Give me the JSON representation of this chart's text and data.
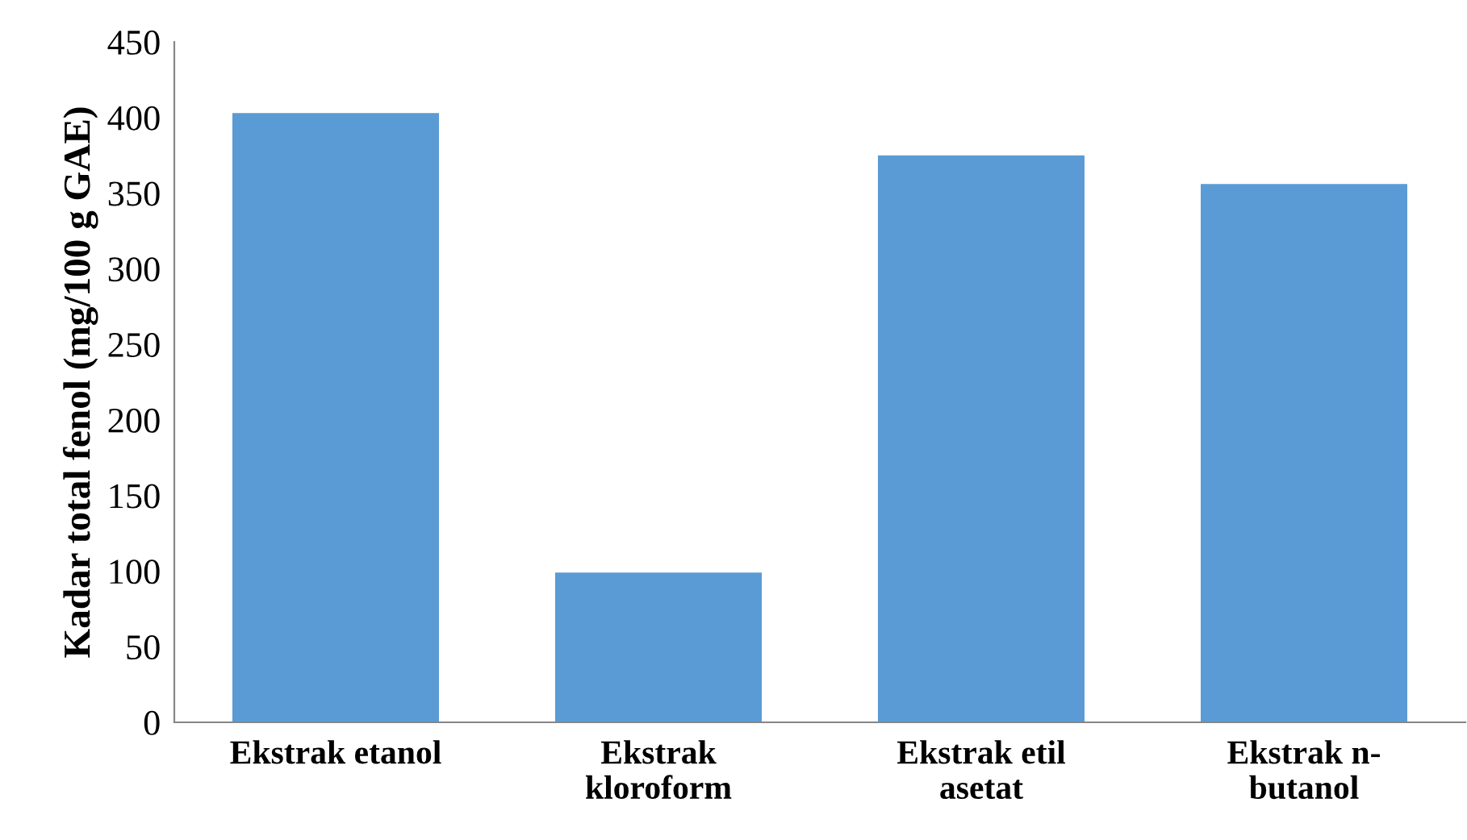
{
  "chart_data": {
    "type": "bar",
    "ylabel": "Kadar total fenol (mg/100 g GAE)",
    "categories": [
      "Ekstrak etanol",
      "Ekstrak\nkloroform",
      "Ekstrak etil\nasetat",
      "Ekstrak n-\nbutanol"
    ],
    "values": [
      403,
      99,
      375,
      356
    ],
    "color": "#5b9bd5",
    "ylim": [
      0,
      450
    ],
    "yticks": [
      0,
      50,
      100,
      150,
      200,
      250,
      300,
      350,
      400,
      450
    ],
    "grid": false
  }
}
